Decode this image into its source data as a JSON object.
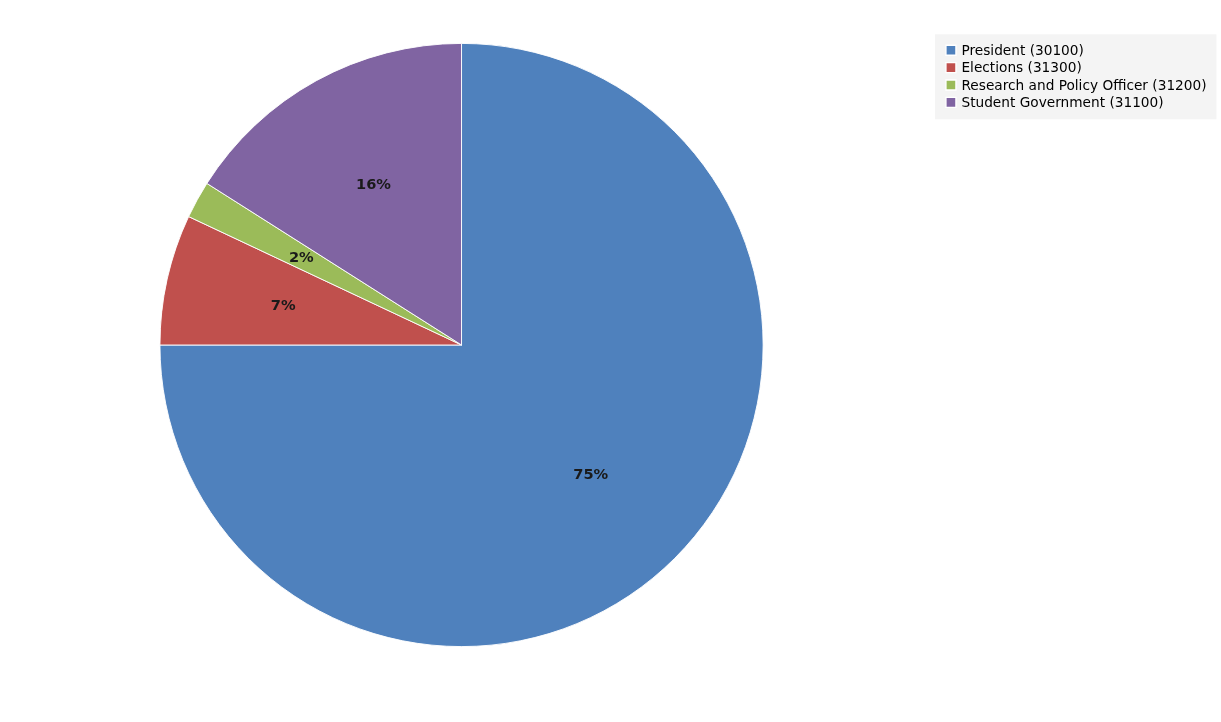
{
  "chart_data": {
    "type": "pie",
    "categories": [
      "President (30100)",
      "Elections (31300)",
      "Research and Policy Officer (31200)",
      "Student Government (31100)"
    ],
    "values": [
      75,
      7,
      2,
      16
    ],
    "colors": [
      "#4f81bd",
      "#c0504d",
      "#9bbb59",
      "#8064a2"
    ],
    "value_labels": [
      "75%",
      "7%",
      "2%",
      "16%"
    ],
    "legend": "right"
  }
}
